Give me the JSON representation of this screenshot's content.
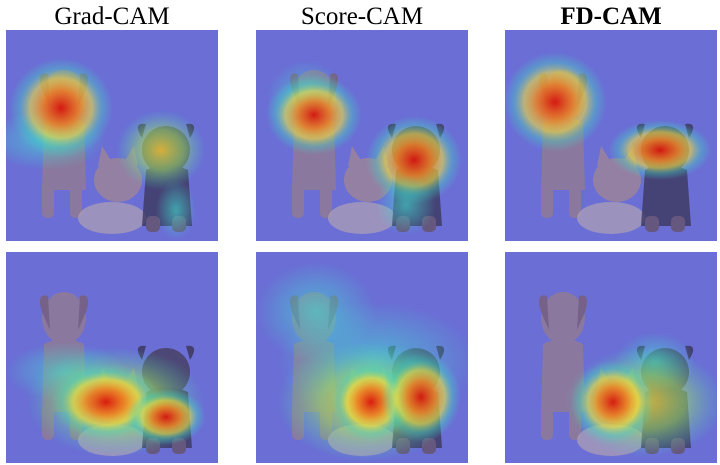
{
  "columns": [
    {
      "title": "Grad-CAM",
      "bold": false
    },
    {
      "title": "Score-CAM",
      "bold": false
    },
    {
      "title": "FD-CAM",
      "bold": true
    }
  ],
  "rows": [
    {
      "panels": [
        {
          "method": "Grad-CAM",
          "heat_focus": [
            "left-dog-head",
            "right-dog-head"
          ]
        },
        {
          "method": "Score-CAM",
          "heat_focus": [
            "left-dog-head",
            "right-dog-head"
          ]
        },
        {
          "method": "FD-CAM",
          "heat_focus": [
            "left-dog-head",
            "right-dog-head"
          ]
        }
      ]
    },
    {
      "panels": [
        {
          "method": "Grad-CAM",
          "heat_focus": [
            "cat"
          ]
        },
        {
          "method": "Score-CAM",
          "heat_focus": [
            "cat",
            "right-dog-body"
          ]
        },
        {
          "method": "FD-CAM",
          "heat_focus": [
            "cat"
          ]
        }
      ]
    }
  ],
  "colors": {
    "heat_background": "#6a6ed6",
    "heat_hot": "#e61e10",
    "heat_warm": "#f0d23c",
    "heat_cool": "#3cd2c8"
  }
}
